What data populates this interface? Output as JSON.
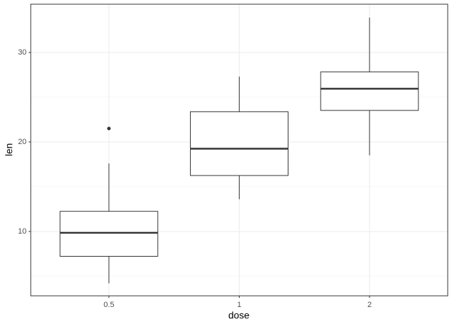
{
  "chart_data": {
    "type": "box",
    "x_label": "dose",
    "y_label": "len",
    "categories": [
      "0.5",
      "1",
      "2"
    ],
    "whisker_low": [
      4.2,
      13.6,
      18.5
    ],
    "q1": [
      7.225,
      16.25,
      23.525
    ],
    "median": [
      9.85,
      19.25,
      25.95
    ],
    "q3": [
      12.25,
      23.375,
      27.825
    ],
    "whisker_high": [
      17.6,
      27.3,
      33.9
    ],
    "outliers": [
      [
        21.5
      ],
      [],
      []
    ],
    "ylim": [
      2.81,
      35.39
    ],
    "yticks": [
      10,
      20,
      30
    ],
    "minor_yticks": [
      5,
      15,
      25,
      35
    ],
    "grid": true,
    "color": "#333333"
  }
}
